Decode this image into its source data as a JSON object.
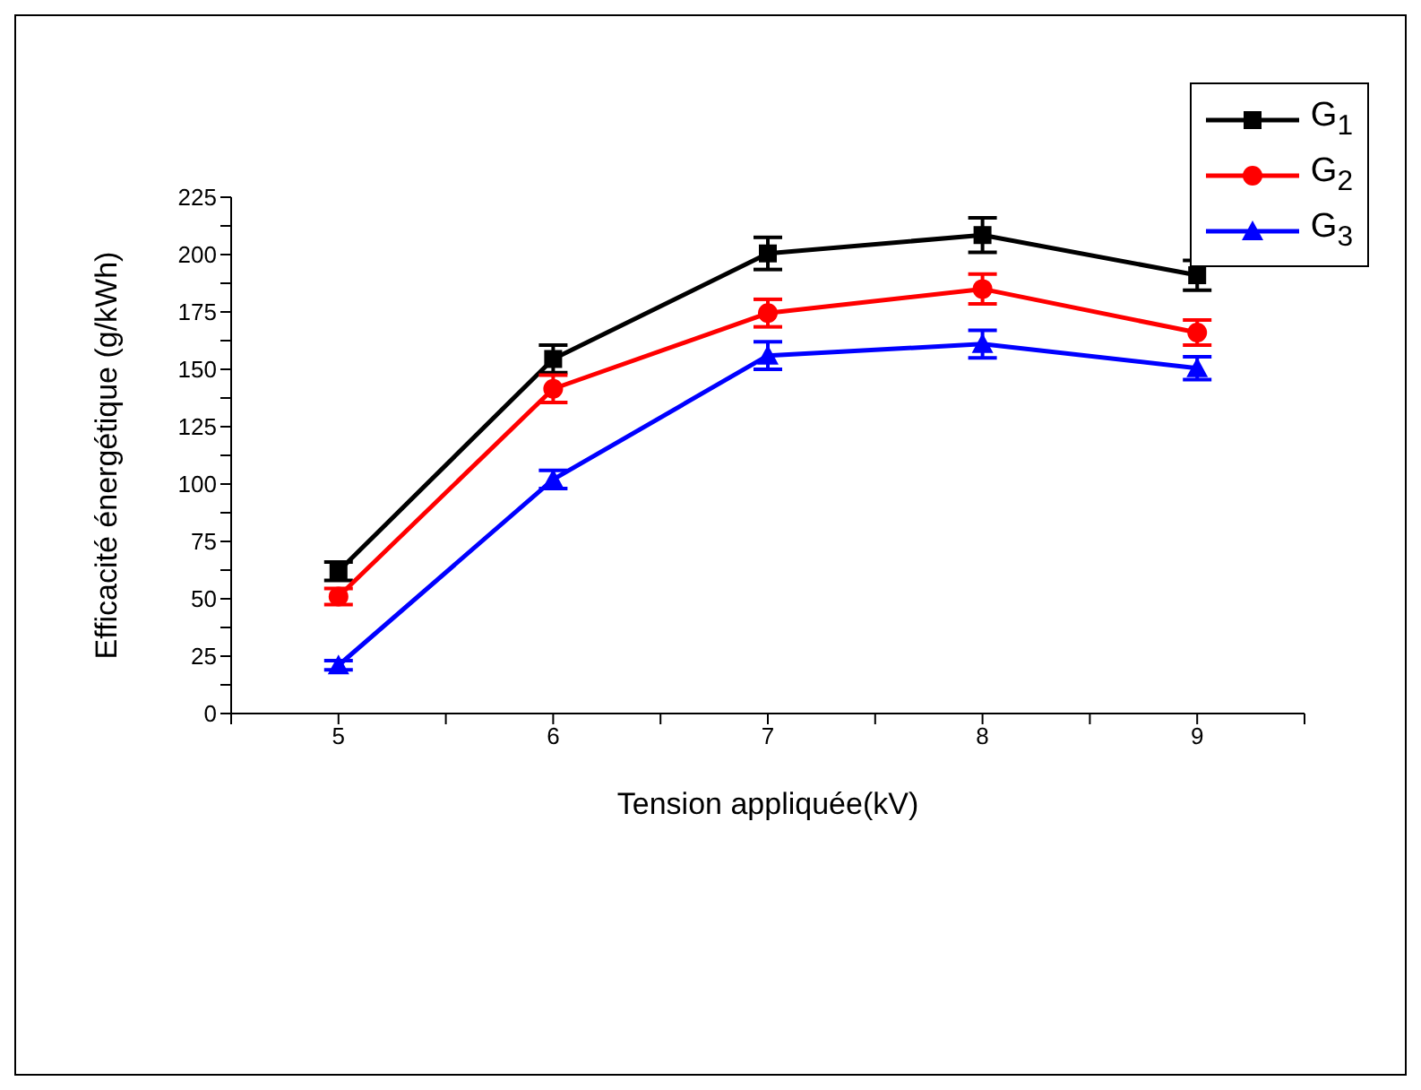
{
  "chart_data": {
    "type": "line",
    "xlabel": "Tension appliquée(kV)",
    "ylabel": "Efficacité énergétique (g/kWh)",
    "x": [
      5,
      6,
      7,
      8,
      9
    ],
    "series": [
      {
        "name": "G$_{1}$",
        "color": "#000000",
        "marker": "square",
        "values": [
          62,
          154.5,
          200.5,
          208.5,
          191
        ],
        "errors": [
          4,
          6,
          7,
          7.5,
          6.5
        ]
      },
      {
        "name": "G$_{2}$",
        "color": "#ff0000",
        "marker": "circle",
        "values": [
          51,
          141.5,
          174.5,
          185,
          166
        ],
        "errors": [
          3.5,
          6,
          6,
          6.5,
          5.5
        ]
      },
      {
        "name": "G$_{3}$",
        "color": "#0000ff",
        "marker": "triangle",
        "values": [
          21,
          102,
          156,
          161,
          150.5
        ],
        "errors": [
          2,
          4,
          6,
          6,
          5
        ]
      }
    ],
    "xlim": [
      4.5,
      9.5
    ],
    "xticks": [
      {
        "value": 4.5,
        "label": null
      },
      5,
      {
        "value": 5.5,
        "label": null
      },
      6,
      {
        "value": 6.5,
        "label": null
      },
      7,
      {
        "value": 7.5,
        "label": null
      },
      8,
      {
        "value": 8.5,
        "label": null
      },
      9,
      {
        "value": 9.5,
        "label": null
      }
    ],
    "ylim": [
      0,
      225
    ],
    "yticks": [
      0,
      {
        "value": 12.5,
        "label": null
      },
      25,
      {
        "value": 37.5,
        "label": null
      },
      50,
      {
        "value": 62.5,
        "label": null
      },
      75,
      {
        "value": 87.5,
        "label": null
      },
      100,
      {
        "value": 112.5,
        "label": null
      },
      125,
      {
        "value": 137.5,
        "label": null
      },
      150,
      {
        "value": 162.5,
        "label": null
      },
      175,
      {
        "value": 187.5,
        "label": null
      },
      200,
      {
        "value": 212.5,
        "label": null
      },
      225
    ],
    "grid": false,
    "legend": "top right",
    "line_style": "solid"
  }
}
